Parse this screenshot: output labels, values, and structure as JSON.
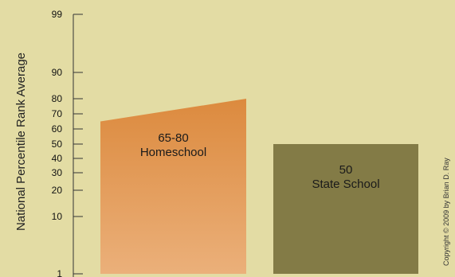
{
  "chart_data": {
    "type": "bar",
    "ylabel": "National Percentile Rank Average",
    "yticks": [
      99,
      90,
      80,
      70,
      60,
      50,
      40,
      30,
      20,
      10,
      1
    ],
    "ylim": [
      1,
      99
    ],
    "bars": [
      {
        "name": "Homeschool",
        "value_label": "65-80",
        "category_label": "Homeschool",
        "value_range": [
          65,
          80
        ],
        "color_top": "#dc8a3e",
        "color_bottom": "#ebb07a"
      },
      {
        "name": "State School",
        "value_label": "50",
        "category_label": "State School",
        "value_range": [
          50,
          50
        ],
        "color_top": "#837b46",
        "color_bottom": "#837b46"
      }
    ],
    "grid": false,
    "legend": "none"
  },
  "copyright": "Copyright © 2009 by Brian D. Ray",
  "colors": {
    "background": "#e3dca4",
    "axis": "#333333"
  }
}
